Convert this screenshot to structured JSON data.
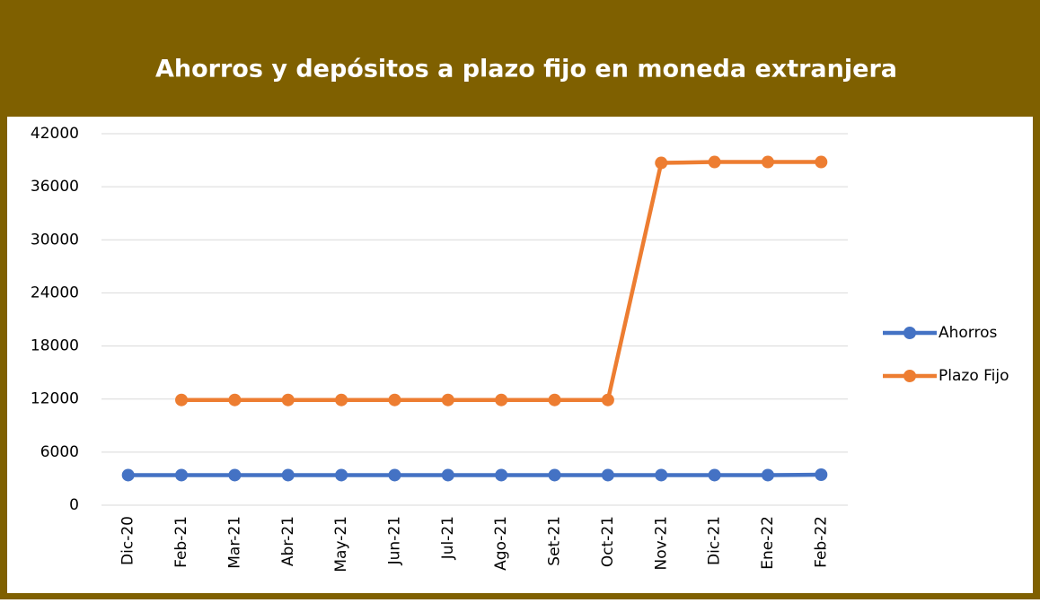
{
  "chart_data": {
    "type": "line",
    "title": "Ahorros y depósitos a plazo fijo en moneda extranjera",
    "categories": [
      "Dic-20",
      "Feb-21",
      "Mar-21",
      "Abr-21",
      "May-21",
      "Jun-21",
      "Jul-21",
      "Ago-21",
      "Set-21",
      "Oct-21",
      "Nov-21",
      "Dic-21",
      "Ene-22",
      "Feb-22"
    ],
    "series": [
      {
        "name": "Ahorros",
        "color": "#4472c4",
        "values": [
          3400,
          3400,
          3400,
          3400,
          3400,
          3400,
          3400,
          3400,
          3400,
          3400,
          3400,
          3400,
          3400,
          3450
        ]
      },
      {
        "name": "Plazo Fijo",
        "color": "#ed7d31",
        "values": [
          null,
          11900,
          11900,
          11900,
          11900,
          11900,
          11900,
          11900,
          11900,
          11900,
          38700,
          38800,
          38800,
          38800
        ]
      }
    ],
    "ylim": [
      0,
      42000
    ],
    "yticks": [
      0,
      6000,
      12000,
      18000,
      24000,
      30000,
      36000,
      42000
    ],
    "grid": true,
    "legend": "right"
  }
}
